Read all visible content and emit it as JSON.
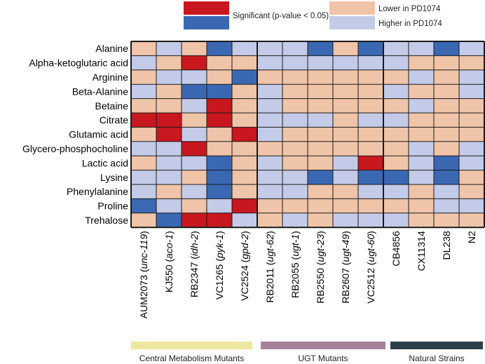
{
  "chart_data": {
    "type": "heatmap",
    "title": "",
    "colors": {
      "significant_lower": "#c8171e",
      "significant_higher": "#3b68b3",
      "lower": "#f0c4a8",
      "higher": "#c4cbe8",
      "grid": "#1a1a1a",
      "group_central": "#efe6a2",
      "group_ugt": "#a68197",
      "group_natural": "#2d3f49"
    },
    "legend": [
      {
        "key": "significant",
        "label": "Significant (p-value < 0.05)",
        "colors": [
          "#c8171e",
          "#3b68b3"
        ]
      },
      {
        "key": "lower",
        "label": "Lower in PD1074",
        "colors": [
          "#f0c4a8"
        ]
      },
      {
        "key": "higher",
        "label": "Higher in PD1074",
        "colors": [
          "#c4cbe8"
        ]
      }
    ],
    "rows": [
      "Alanine",
      "Alpha-ketoglutaric acid",
      "Arginine",
      "Beta-Alanine",
      "Betaine",
      "Citrate",
      "Glutamic acid",
      "Glycero-phosphocholine",
      "Lactic acid",
      "Lysine",
      "Phenylalanine",
      "Proline",
      "Trehalose"
    ],
    "columns": [
      {
        "strain": "AUM2073",
        "gene": "unc-119"
      },
      {
        "strain": "KJ550",
        "gene": "aco-1"
      },
      {
        "strain": "RB2347",
        "gene": "idh-2"
      },
      {
        "strain": "VC1265",
        "gene": "pyk-1"
      },
      {
        "strain": "VC2524",
        "gene": "gpd-2"
      },
      {
        "strain": "RB2011",
        "gene": "ugt-62"
      },
      {
        "strain": "RB2055",
        "gene": "ugt-1"
      },
      {
        "strain": "RB2550",
        "gene": "ugt-23"
      },
      {
        "strain": "RB2607",
        "gene": "ugt-49"
      },
      {
        "strain": "VC2512",
        "gene": "ugt-60"
      },
      {
        "strain": "CB4856",
        "gene": ""
      },
      {
        "strain": "CX11314",
        "gene": ""
      },
      {
        "strain": "DL238",
        "gene": ""
      },
      {
        "strain": "N2",
        "gene": ""
      }
    ],
    "cell_codes": "L = lower in PD1074, H = higher in PD1074, SL = significant lower (red), SH = significant higher (blue)",
    "values": [
      [
        "L",
        "H",
        "L",
        "SH",
        "H",
        "H",
        "H",
        "SH",
        "L",
        "SH",
        "H",
        "H",
        "SH",
        "H"
      ],
      [
        "H",
        "L",
        "SL",
        "L",
        "L",
        "H",
        "H",
        "H",
        "H",
        "H",
        "H",
        "L",
        "L",
        "L"
      ],
      [
        "L",
        "H",
        "H",
        "L",
        "SH",
        "L",
        "L",
        "L",
        "L",
        "L",
        "L",
        "H",
        "L",
        "H"
      ],
      [
        "H",
        "L",
        "SH",
        "SH",
        "L",
        "H",
        "L",
        "L",
        "L",
        "L",
        "H",
        "L",
        "L",
        "H"
      ],
      [
        "L",
        "L",
        "H",
        "SL",
        "L",
        "H",
        "L",
        "L",
        "L",
        "L",
        "L",
        "H",
        "L",
        "L"
      ],
      [
        "SL",
        "SL",
        "L",
        "SL",
        "L",
        "H",
        "H",
        "H",
        "L",
        "H",
        "H",
        "L",
        "L",
        "L"
      ],
      [
        "L",
        "SL",
        "H",
        "L",
        "SL",
        "H",
        "L",
        "L",
        "L",
        "L",
        "L",
        "L",
        "L",
        "L"
      ],
      [
        "H",
        "H",
        "SL",
        "L",
        "L",
        "L",
        "L",
        "L",
        "L",
        "L",
        "L",
        "H",
        "L",
        "H"
      ],
      [
        "L",
        "H",
        "H",
        "SH",
        "L",
        "H",
        "L",
        "L",
        "H",
        "SL",
        "L",
        "H",
        "SH",
        "H"
      ],
      [
        "H",
        "H",
        "L",
        "SH",
        "L",
        "H",
        "H",
        "SH",
        "H",
        "SH",
        "SH",
        "H",
        "SH",
        "L"
      ],
      [
        "H",
        "L",
        "H",
        "SH",
        "L",
        "H",
        "H",
        "L",
        "L",
        "H",
        "H",
        "L",
        "H",
        "L"
      ],
      [
        "SH",
        "H",
        "L",
        "H",
        "SL",
        "L",
        "L",
        "L",
        "L",
        "L",
        "L",
        "L",
        "H",
        "H"
      ],
      [
        "L",
        "SH",
        "SL",
        "SL",
        "H",
        "L",
        "H",
        "L",
        "H",
        "H",
        "H",
        "L",
        "L",
        "L"
      ]
    ],
    "column_groups": [
      {
        "label": "Central Metabolism Mutants",
        "start": 0,
        "end": 4,
        "color": "#efe6a2"
      },
      {
        "label": "UGT Mutants",
        "start": 5,
        "end": 9,
        "color": "#a68197"
      },
      {
        "label": "Natural Strains",
        "start": 10,
        "end": 13,
        "color": "#2d3f49"
      }
    ],
    "xlabel": "",
    "ylabel": ""
  }
}
